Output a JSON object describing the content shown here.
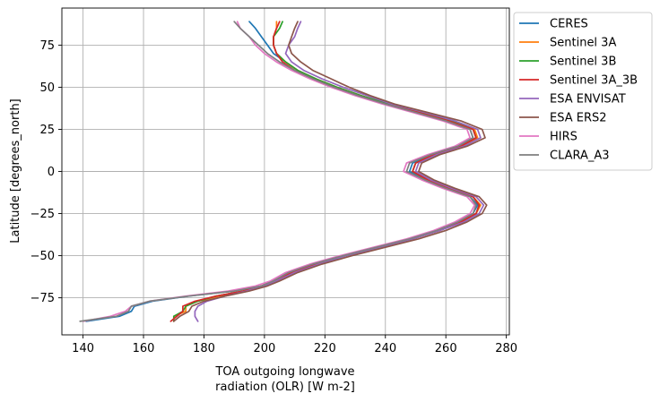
{
  "chart_data": {
    "type": "line",
    "title": "",
    "xlabel_line1": "TOA outgoing longwave",
    "xlabel_line2": "radiation (OLR) [W m-2]",
    "ylabel": "Latitude [degrees_north]",
    "xlim": [
      133,
      281
    ],
    "ylim": [
      -97,
      97
    ],
    "xticks": [
      140,
      160,
      180,
      200,
      220,
      240,
      260,
      280
    ],
    "yticks": [
      -75,
      -50,
      -25,
      0,
      25,
      50,
      75
    ],
    "grid": true,
    "legend_position": "outside-top-right",
    "y": [
      -89,
      -86,
      -83,
      -80,
      -77,
      -74,
      -71,
      -68,
      -65,
      -60,
      -55,
      -50,
      -45,
      -40,
      -35,
      -30,
      -25,
      -20,
      -15,
      -10,
      -5,
      0,
      5,
      10,
      15,
      20,
      25,
      30,
      35,
      40,
      45,
      50,
      55,
      60,
      65,
      70,
      75,
      80,
      85,
      89
    ],
    "series": [
      {
        "name": "CERES",
        "color": "#1f77b4",
        "values": [
          141,
          152,
          156,
          157,
          163,
          175,
          190,
          199,
          203,
          208,
          216,
          226,
          237,
          248,
          257,
          264,
          269,
          270.5,
          268,
          260,
          253,
          248,
          249,
          255,
          264,
          269,
          268,
          261,
          250,
          240,
          231,
          223,
          217,
          211,
          207,
          203,
          201,
          199,
          197,
          195
        ]
      },
      {
        "name": "Sentinel 3A",
        "color": "#ff7f0e",
        "values": [
          170,
          170,
          174,
          174,
          178,
          185,
          193,
          199,
          203,
          209,
          217,
          227,
          238,
          249,
          258,
          265,
          270,
          271.5,
          269,
          261,
          254,
          249,
          250,
          256,
          265,
          270.5,
          269.5,
          262,
          252,
          241,
          232,
          224,
          217,
          211,
          207,
          204,
          203,
          203,
          204,
          204
        ]
      },
      {
        "name": "Sentinel 3B",
        "color": "#2ca02c",
        "values": [
          170,
          170,
          173,
          174,
          178,
          184,
          193,
          199,
          203,
          209,
          217,
          227,
          238,
          249,
          258,
          265,
          270,
          271,
          269,
          261,
          254,
          249,
          250,
          256,
          265,
          270,
          269,
          262,
          252,
          241,
          232,
          224,
          217,
          211,
          207,
          204,
          203,
          203,
          205,
          206
        ]
      },
      {
        "name": "Sentinel 3A_3B",
        "color": "#d62728",
        "values": [
          169,
          171,
          173,
          173,
          177,
          184,
          193,
          199,
          203,
          209,
          217,
          227,
          238,
          249,
          258,
          265,
          270,
          271,
          269,
          261,
          254,
          249,
          250,
          256,
          265,
          270,
          269,
          261,
          251,
          240,
          231,
          223,
          216,
          210,
          206,
          204,
          203,
          203,
          204,
          205
        ]
      },
      {
        "name": "ESA ENVISAT",
        "color": "#9467bd",
        "values": [
          178,
          177,
          177,
          178,
          181,
          187,
          194,
          200,
          204,
          210,
          218,
          227,
          238,
          249,
          258,
          266,
          271,
          272.5,
          270,
          262,
          255,
          250,
          251,
          257,
          266,
          271.5,
          270.5,
          263,
          253,
          242,
          234,
          226,
          219,
          213,
          209,
          207,
          208,
          210,
          211,
          212
        ]
      },
      {
        "name": "ESA ERS2",
        "color": "#8c564b",
        "values": [
          170,
          172,
          175,
          176,
          180,
          187,
          195,
          201,
          205,
          211,
          219,
          229,
          240,
          251,
          260,
          267,
          272,
          273.5,
          271,
          263,
          256,
          251,
          252,
          258,
          267,
          273,
          272,
          265,
          254,
          243,
          235,
          228,
          222,
          216,
          212,
          209,
          208,
          209,
          210,
          211
        ]
      },
      {
        "name": "HIRS",
        "color": "#e377c2",
        "values": [
          140,
          149,
          154,
          156,
          162,
          174,
          188,
          197,
          202,
          207,
          215,
          225,
          236,
          247,
          256,
          263,
          268,
          269.5,
          267,
          259,
          252,
          246,
          247,
          254,
          263,
          268,
          267,
          259,
          249,
          239,
          230,
          222,
          215,
          209,
          204,
          200,
          197,
          195,
          192,
          191
        ]
      },
      {
        "name": "CLARA_A3",
        "color": "#7f7f7f",
        "values": [
          139,
          151,
          155,
          156,
          162,
          175,
          190,
          199,
          203,
          208,
          216,
          226,
          237,
          248,
          257,
          264,
          269,
          270,
          268,
          260,
          253,
          247,
          248,
          255,
          264,
          269,
          268,
          260,
          250,
          240,
          231,
          223,
          216,
          210,
          205,
          201,
          198,
          195,
          192,
          190
        ]
      }
    ]
  }
}
